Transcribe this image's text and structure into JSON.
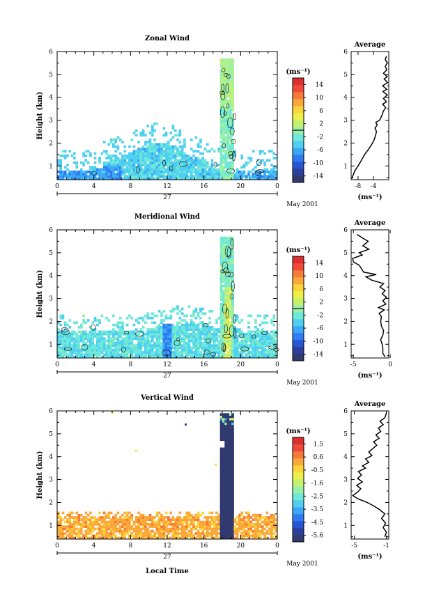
{
  "chart_data": [
    {
      "type": "heatmap",
      "title": "Zonal Wind",
      "ylabel": "Height (km)",
      "xlim": [
        0,
        24
      ],
      "ylim": [
        0.4,
        6
      ],
      "x_ticks": [
        "0",
        "4",
        "8",
        "12",
        "16",
        "20",
        "0"
      ],
      "y_ticks": [
        "1",
        "2",
        "3",
        "4",
        "5",
        "6"
      ],
      "date_label": "27",
      "month_label": "May 2001",
      "colorbar": {
        "unit": "(ms⁻¹)",
        "ticks": [
          "14",
          "10",
          "6",
          "2",
          "-2",
          "-6",
          "-10",
          "-14"
        ],
        "min": -16,
        "max": 16,
        "contour": 0
      },
      "profile": {
        "title": "Average",
        "xlabel": "(ms⁻¹)",
        "x_ticks": [
          "-4",
          "-8"
        ],
        "y_ticks": [
          "1",
          "2",
          "3",
          "4",
          "5",
          "6"
        ],
        "points": [
          [
            -9.6,
            0.45
          ],
          [
            -9.3,
            0.6
          ],
          [
            -8.8,
            0.8
          ],
          [
            -8.0,
            1.0
          ],
          [
            -7.3,
            1.2
          ],
          [
            -6.3,
            1.5
          ],
          [
            -5.4,
            1.7
          ],
          [
            -4.6,
            1.9
          ],
          [
            -3.9,
            2.1
          ],
          [
            -3.5,
            2.3
          ],
          [
            -3.2,
            2.5
          ],
          [
            -3.6,
            2.65
          ],
          [
            -3.0,
            2.8
          ],
          [
            -3.4,
            2.9
          ],
          [
            -2.4,
            3.0
          ],
          [
            -1.8,
            3.2
          ],
          [
            -1.4,
            3.4
          ],
          [
            -0.8,
            3.55
          ],
          [
            -1.6,
            3.7
          ],
          [
            -0.6,
            3.8
          ],
          [
            -1.4,
            3.95
          ],
          [
            -0.4,
            4.1
          ],
          [
            -1.5,
            4.25
          ],
          [
            -0.5,
            4.35
          ],
          [
            -1.6,
            4.5
          ],
          [
            -0.3,
            4.65
          ],
          [
            -1.2,
            4.8
          ],
          [
            -0.4,
            4.9
          ],
          [
            -1.4,
            5.05
          ],
          [
            -0.5,
            5.2
          ],
          [
            -0.9,
            5.35
          ],
          [
            -0.4,
            5.5
          ],
          [
            -0.9,
            5.65
          ],
          [
            -0.6,
            5.8
          ]
        ]
      }
    },
    {
      "type": "heatmap",
      "title": "Meridional Wind",
      "ylabel": "Height (km)",
      "xlim": [
        0,
        24
      ],
      "ylim": [
        0.4,
        6
      ],
      "x_ticks": [
        "0",
        "4",
        "8",
        "12",
        "16",
        "20",
        "0"
      ],
      "y_ticks": [
        "1",
        "2",
        "3",
        "4",
        "5",
        "6"
      ],
      "date_label": "27",
      "month_label": "May 2001",
      "colorbar": {
        "unit": "(ms⁻¹)",
        "ticks": [
          "14",
          "10",
          "6",
          "2",
          "-2",
          "-6",
          "-10",
          "-14"
        ],
        "min": -16,
        "max": 16,
        "contour": 0
      },
      "profile": {
        "title": "Average",
        "xlabel": "(ms⁻¹)",
        "x_ticks": [
          "-5",
          "0"
        ],
        "y_ticks": [
          "1",
          "2",
          "3",
          "4",
          "5",
          "6"
        ],
        "points": [
          [
            -0.7,
            0.45
          ],
          [
            -1.0,
            0.6
          ],
          [
            -1.0,
            0.8
          ],
          [
            -1.1,
            1.0
          ],
          [
            -1.3,
            1.2
          ],
          [
            -1.0,
            1.4
          ],
          [
            -0.9,
            1.6
          ],
          [
            -1.2,
            1.8
          ],
          [
            -1.3,
            2.0
          ],
          [
            -1.2,
            2.2
          ],
          [
            -1.5,
            2.35
          ],
          [
            -0.8,
            2.5
          ],
          [
            -1.6,
            2.6
          ],
          [
            -0.6,
            2.75
          ],
          [
            -1.0,
            2.9
          ],
          [
            -0.5,
            3.05
          ],
          [
            -1.1,
            3.2
          ],
          [
            -0.7,
            3.35
          ],
          [
            -1.4,
            3.5
          ],
          [
            -0.9,
            3.65
          ],
          [
            -2.5,
            3.8
          ],
          [
            -3.3,
            3.95
          ],
          [
            -1.9,
            4.05
          ],
          [
            -3.6,
            4.15
          ],
          [
            -3.9,
            4.3
          ],
          [
            -4.2,
            4.45
          ],
          [
            -5.0,
            4.6
          ],
          [
            -5.1,
            4.75
          ],
          [
            -3.8,
            4.9
          ],
          [
            -4.2,
            5.0
          ],
          [
            -2.9,
            5.15
          ],
          [
            -3.7,
            5.3
          ],
          [
            -3.0,
            5.5
          ],
          [
            -3.8,
            5.65
          ],
          [
            -4.5,
            5.8
          ]
        ]
      }
    },
    {
      "type": "heatmap",
      "title": "Vertical Wind",
      "ylabel": "Height (km)",
      "xlabel": "Local Time",
      "xlim": [
        0,
        24
      ],
      "ylim": [
        0.4,
        6
      ],
      "x_ticks": [
        "0",
        "4",
        "8",
        "12",
        "16",
        "20",
        "0"
      ],
      "y_ticks": [
        "1",
        "2",
        "3",
        "4",
        "5",
        "6"
      ],
      "date_label": "27",
      "month_label": "May 2001",
      "colorbar": {
        "unit": "(ms⁻¹)",
        "ticks": [
          "1.5",
          "0.6",
          "-0.5",
          "-1.6",
          "-2.5",
          "-3.5",
          "-4.5",
          "-5.6"
        ],
        "min": -6,
        "max": 2
      },
      "profile": {
        "title": "Average",
        "xlabel": "(ms⁻¹)",
        "x_ticks": [
          "-5",
          "-1"
        ],
        "y_ticks": [
          "1",
          "2",
          "3",
          "4",
          "5",
          "6"
        ],
        "points": [
          [
            -1.2,
            0.5
          ],
          [
            -1.0,
            0.7
          ],
          [
            -1.4,
            0.9
          ],
          [
            -1.1,
            1.1
          ],
          [
            -1.6,
            1.3
          ],
          [
            -1.2,
            1.5
          ],
          [
            -1.9,
            1.7
          ],
          [
            -2.6,
            1.85
          ],
          [
            -3.4,
            2.0
          ],
          [
            -4.5,
            2.15
          ],
          [
            -5.2,
            2.3
          ],
          [
            -4.6,
            2.45
          ],
          [
            -4.2,
            2.6
          ],
          [
            -4.7,
            2.75
          ],
          [
            -4.0,
            2.9
          ],
          [
            -4.6,
            3.05
          ],
          [
            -4.1,
            3.2
          ],
          [
            -4.5,
            3.35
          ],
          [
            -3.6,
            3.5
          ],
          [
            -4.0,
            3.6
          ],
          [
            -3.2,
            3.75
          ],
          [
            -3.6,
            3.9
          ],
          [
            -2.8,
            4.05
          ],
          [
            -3.2,
            4.2
          ],
          [
            -2.7,
            4.35
          ],
          [
            -2.2,
            4.5
          ],
          [
            -2.6,
            4.65
          ],
          [
            -1.9,
            4.8
          ],
          [
            -2.3,
            4.95
          ],
          [
            -1.7,
            5.1
          ],
          [
            -2.0,
            5.25
          ],
          [
            -1.4,
            5.4
          ],
          [
            -1.8,
            5.55
          ],
          [
            -1.2,
            5.7
          ],
          [
            -1.0,
            5.9
          ]
        ]
      }
    }
  ]
}
